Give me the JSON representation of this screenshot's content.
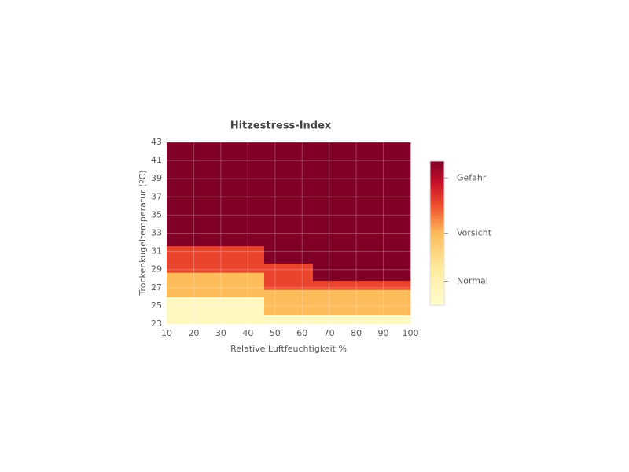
{
  "chart_data": {
    "type": "heatmap",
    "title": "Hitzestress-Index",
    "x_label": "Relative Luftfeuchtigkeit %",
    "y_label": "Trockenkugeltemperatur (ºC)",
    "x_edges": [
      10,
      46,
      64,
      100
    ],
    "y_edges": [
      23,
      24,
      26,
      26.8,
      27.8,
      28.7,
      29.7,
      31.6,
      43
    ],
    "z": [
      [
        0.2,
        0.2,
        0.2
      ],
      [
        0.2,
        1.5,
        1.5
      ],
      [
        1.5,
        1.5,
        1.5
      ],
      [
        1.5,
        2.15,
        2.15
      ],
      [
        1.5,
        2.15,
        3
      ],
      [
        2.15,
        2.15,
        3
      ],
      [
        2.15,
        3,
        3
      ],
      [
        3,
        3,
        3
      ]
    ],
    "xlim": [
      10,
      100
    ],
    "xticks": [
      10,
      20,
      30,
      40,
      50,
      60,
      70,
      80,
      90,
      100
    ],
    "ylim": [
      23,
      43
    ],
    "yticks": [
      23,
      25,
      27,
      29,
      31,
      33,
      35,
      37,
      39,
      41,
      43
    ],
    "zlim": [
      0,
      3
    ],
    "colorscale": [
      [
        0,
        "#fffccc"
      ],
      [
        0.25,
        "#feec9f"
      ],
      [
        0.5,
        "#fdbb5a"
      ],
      [
        0.7,
        "#ee4b2c"
      ],
      [
        0.85,
        "#c8102a"
      ],
      [
        1,
        "#800026"
      ]
    ],
    "colorbar_ticks": [
      {
        "value": 0.5,
        "label": "Normal"
      },
      {
        "value": 1.5,
        "label": "Vorsicht"
      },
      {
        "value": 2.65,
        "label": "Gefahr"
      }
    ],
    "grid": true
  }
}
